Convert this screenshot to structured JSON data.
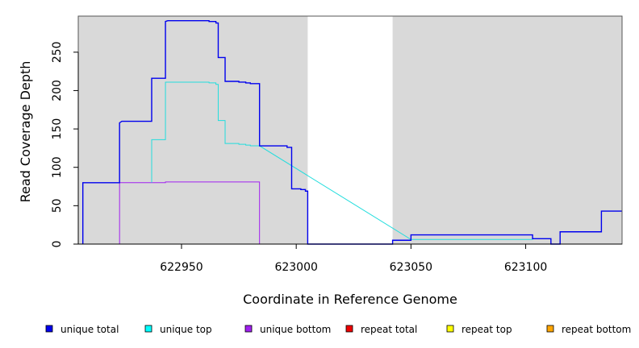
{
  "chart_data": {
    "type": "line",
    "title": "",
    "xlabel": "Coordinate in Reference Genome",
    "ylabel": "Read Coverage Depth",
    "xlim": [
      622905,
      623142
    ],
    "ylim": [
      0,
      297
    ],
    "x_ticks": [
      622950,
      623000,
      623050,
      623100
    ],
    "y_ticks": [
      0,
      50,
      100,
      150,
      200,
      250
    ],
    "x_tick_labels": [
      "622950",
      "623000",
      "623050",
      "623100"
    ],
    "y_tick_labels": [
      "0",
      "50",
      "100",
      "150",
      "200",
      "250"
    ],
    "grid": false,
    "shaded_regions": [
      {
        "x_start": 622905,
        "x_end": 623005,
        "color": "#d9d9d9"
      },
      {
        "x_start": 623042,
        "x_end": 623142,
        "color": "#d9d9d9"
      }
    ],
    "series": [
      {
        "name": "unique total",
        "color": "#0000ee",
        "step": true,
        "points": [
          [
            622907,
            0
          ],
          [
            622907,
            80
          ],
          [
            622923,
            80
          ],
          [
            622923,
            158
          ],
          [
            622924,
            160
          ],
          [
            622937,
            160
          ],
          [
            622937,
            216
          ],
          [
            622943,
            216
          ],
          [
            622943,
            290
          ],
          [
            622944,
            291
          ],
          [
            622962,
            291
          ],
          [
            622962,
            290
          ],
          [
            622965,
            290
          ],
          [
            622965,
            288
          ],
          [
            622966,
            288
          ],
          [
            622966,
            243
          ],
          [
            622969,
            243
          ],
          [
            622969,
            212
          ],
          [
            622975,
            212
          ],
          [
            622975,
            211
          ],
          [
            622978,
            211
          ],
          [
            622978,
            210
          ],
          [
            622980,
            210
          ],
          [
            622980,
            209
          ],
          [
            622984,
            209
          ],
          [
            622984,
            128
          ],
          [
            622996,
            128
          ],
          [
            622996,
            126
          ],
          [
            622998,
            126
          ],
          [
            622998,
            72
          ],
          [
            623002,
            72
          ],
          [
            623002,
            71
          ],
          [
            623004,
            71
          ],
          [
            623004,
            69
          ],
          [
            623005,
            69
          ],
          [
            623005,
            0
          ],
          [
            623042,
            0
          ],
          [
            623042,
            5
          ],
          [
            623050,
            5
          ],
          [
            623050,
            12
          ],
          [
            623103,
            12
          ],
          [
            623103,
            7
          ],
          [
            623111,
            7
          ],
          [
            623111,
            0
          ],
          [
            623115,
            0
          ],
          [
            623115,
            16
          ],
          [
            623133,
            16
          ],
          [
            623133,
            43
          ],
          [
            623142,
            43
          ]
        ]
      },
      {
        "name": "unique top",
        "color": "#22dddd",
        "step": true,
        "points": [
          [
            622937,
            80
          ],
          [
            622937,
            136
          ],
          [
            622943,
            136
          ],
          [
            622943,
            211
          ],
          [
            622962,
            211
          ],
          [
            622962,
            210
          ],
          [
            622965,
            210
          ],
          [
            622965,
            208
          ],
          [
            622966,
            208
          ],
          [
            622966,
            161
          ],
          [
            622969,
            161
          ],
          [
            622969,
            131
          ],
          [
            622975,
            131
          ],
          [
            622975,
            130
          ],
          [
            622978,
            130
          ],
          [
            622978,
            129
          ],
          [
            622980,
            129
          ],
          [
            622980,
            128
          ],
          [
            622984,
            128
          ],
          [
            622984,
            128
          ],
          [
            623050,
            6
          ],
          [
            623103,
            6
          ],
          [
            623103,
            7
          ],
          [
            623111,
            7
          ]
        ]
      },
      {
        "name": "unique bottom",
        "color": "#a020f0",
        "step": true,
        "points": [
          [
            622923,
            0
          ],
          [
            622923,
            80
          ],
          [
            622943,
            80
          ],
          [
            622943,
            81
          ],
          [
            622984,
            81
          ],
          [
            622984,
            0
          ]
        ]
      },
      {
        "name": "repeat total",
        "color": "#ee0000",
        "step": true,
        "points": [
          [
            622905,
            0
          ],
          [
            623142,
            0
          ]
        ]
      },
      {
        "name": "repeat top",
        "color": "#eeee00",
        "step": true,
        "points": []
      },
      {
        "name": "repeat bottom",
        "color": "#ffa500",
        "step": true,
        "points": [
          [
            622923,
            0
          ],
          [
            622984,
            0
          ],
          [
            623050,
            0
          ],
          [
            623103,
            0
          ]
        ]
      }
    ],
    "legend": {
      "placement": "bottom",
      "entries": [
        {
          "label": "unique total",
          "color": "#0000ee"
        },
        {
          "label": "unique top",
          "color": "#00ffff"
        },
        {
          "label": "unique bottom",
          "color": "#a020f0"
        },
        {
          "label": "repeat total",
          "color": "#ee0000"
        },
        {
          "label": "repeat top",
          "color": "#ffff00"
        },
        {
          "label": "repeat bottom",
          "color": "#ffa500"
        }
      ]
    }
  }
}
